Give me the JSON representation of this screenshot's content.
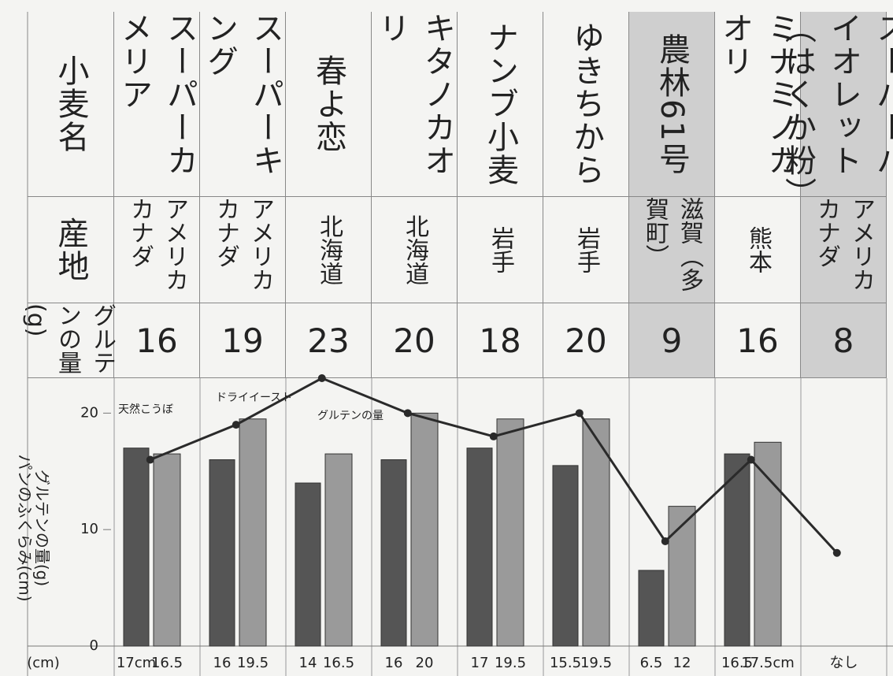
{
  "table": {
    "row_headers": [
      "小麦名",
      "産地",
      "グルテンの量(g)"
    ],
    "names": [
      "スーパーカメリア",
      "スーパーキング",
      "春よ恋",
      "キタノカオリ",
      "ナンブ小麦",
      "ゆきちから",
      "農林61号",
      "ミナミノカオリ",
      "スーパーバイオレット（はくか粉）"
    ],
    "origins": [
      "アメリカ カナダ",
      "アメリカ カナダ",
      "北海道",
      "北海道",
      "岩手",
      "岩手",
      "滋賀（多賀町）",
      "熊本",
      "アメリカ カナダ"
    ]
  },
  "chart_data": {
    "type": "bar",
    "ylabels": [
      "パンのふくらみ(cm)",
      "グルテンの量(g)"
    ],
    "x_unit_label": "(cm)",
    "categories": [
      "スーパーカメリア",
      "スーパーキング",
      "春よ恋",
      "キタノカオリ",
      "ナンブ小麦",
      "ゆきちから",
      "農林61号",
      "ミナミノカオリ",
      "スーパーバイオレット"
    ],
    "ylim": [
      0,
      23
    ],
    "yticks": [
      0,
      10,
      20
    ],
    "series": [
      {
        "name": "天然こうぼ",
        "color": "#555555",
        "values": [
          17,
          16,
          14,
          16,
          17,
          15.5,
          6.5,
          16.5,
          null
        ],
        "value_labels": [
          "17cm",
          "16",
          "14",
          "16",
          "17",
          "15.5",
          "6.5",
          "16.5",
          "なし"
        ]
      },
      {
        "name": "ドライイースト",
        "color": "#9a9a9a",
        "values": [
          16.5,
          19.5,
          16.5,
          20,
          19.5,
          19.5,
          12,
          17.5,
          null
        ],
        "value_labels": [
          "16.5",
          "19.5",
          "16.5",
          "20",
          "19.5",
          "19.5",
          "12",
          "17.5cm",
          null
        ]
      },
      {
        "name": "グルテンの量",
        "type": "line",
        "color": "#2a2a2a",
        "values": [
          16,
          19,
          23,
          20,
          18,
          20,
          9,
          16,
          8
        ]
      }
    ]
  }
}
